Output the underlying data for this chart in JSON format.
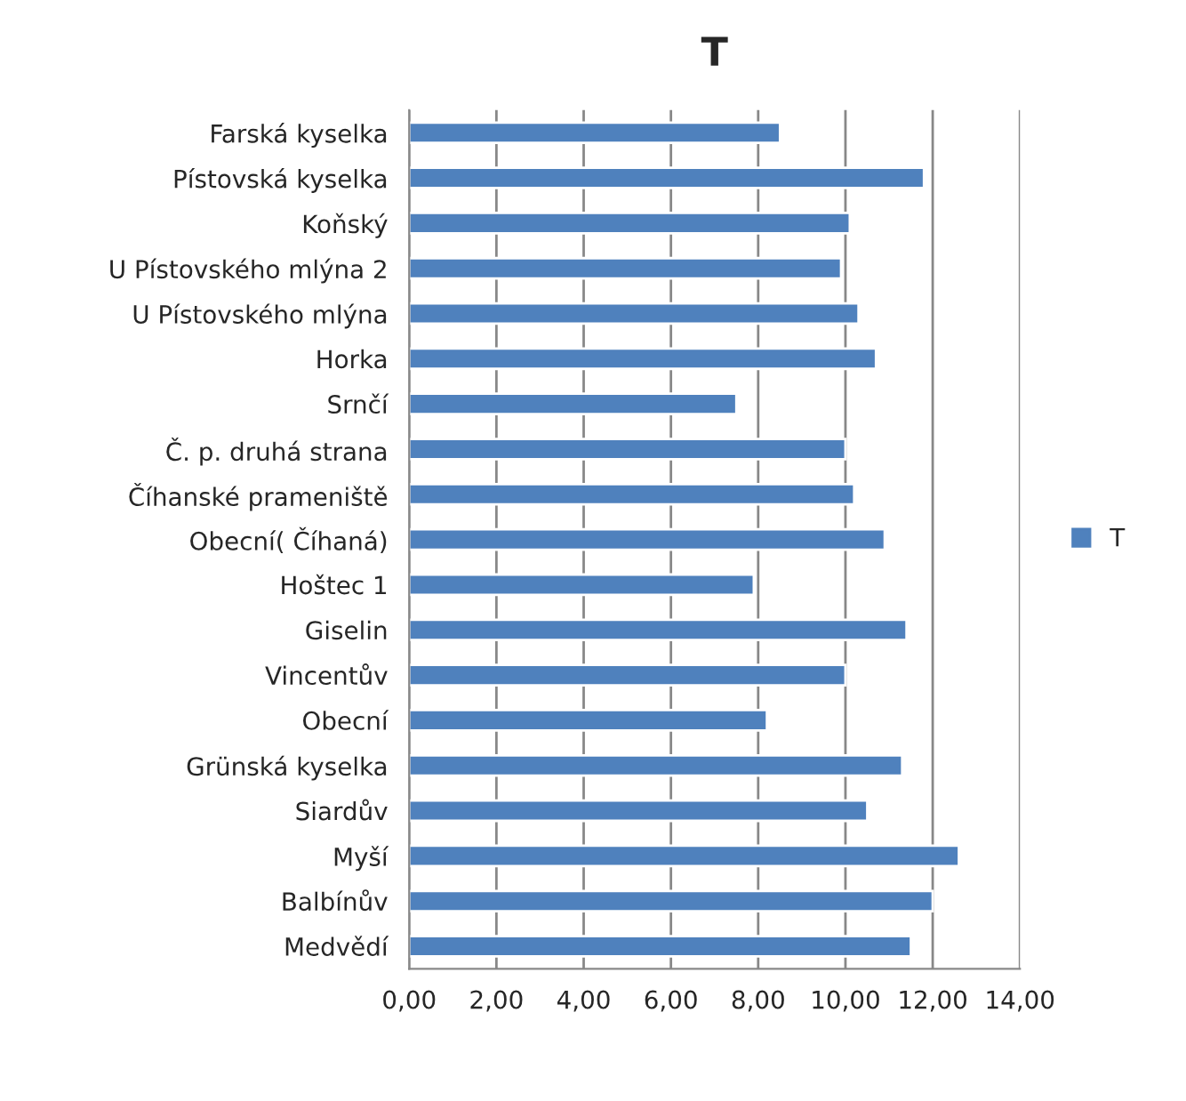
{
  "chart_data": {
    "type": "bar",
    "orientation": "horizontal",
    "title": "T",
    "categories": [
      "Farská kyselka",
      "Pístovská kyselka",
      "Koňský",
      "U Pístovského mlýna 2",
      "U Pístovského mlýna",
      "Horka",
      "Srnčí",
      "Č. p. druhá strana",
      "Číhanské prameniště",
      "Obecní( Číhaná)",
      "Hoštec 1",
      "Giselin",
      "Vincentův",
      "Obecní",
      "Grünská kyselka",
      "Siardův",
      "Myší",
      "Balbínův",
      "Medvědí"
    ],
    "series": [
      {
        "name": "T",
        "color": "#4f81bd",
        "values": [
          8.5,
          11.8,
          10.1,
          9.9,
          10.3,
          10.7,
          7.5,
          10.0,
          10.2,
          10.9,
          7.9,
          11.4,
          10.0,
          8.2,
          11.3,
          10.5,
          12.6,
          12.0,
          11.5
        ]
      }
    ],
    "xlim": [
      0,
      14
    ],
    "xticks": [
      {
        "value": 0,
        "label": "0,00"
      },
      {
        "value": 2,
        "label": "2,00"
      },
      {
        "value": 4,
        "label": "4,00"
      },
      {
        "value": 6,
        "label": "6,00"
      },
      {
        "value": 8,
        "label": "8,00"
      },
      {
        "value": 10,
        "label": "10,00"
      },
      {
        "value": 12,
        "label": "12,00"
      },
      {
        "value": 14,
        "label": "14,00"
      }
    ],
    "grid": "x",
    "legend": "right"
  }
}
